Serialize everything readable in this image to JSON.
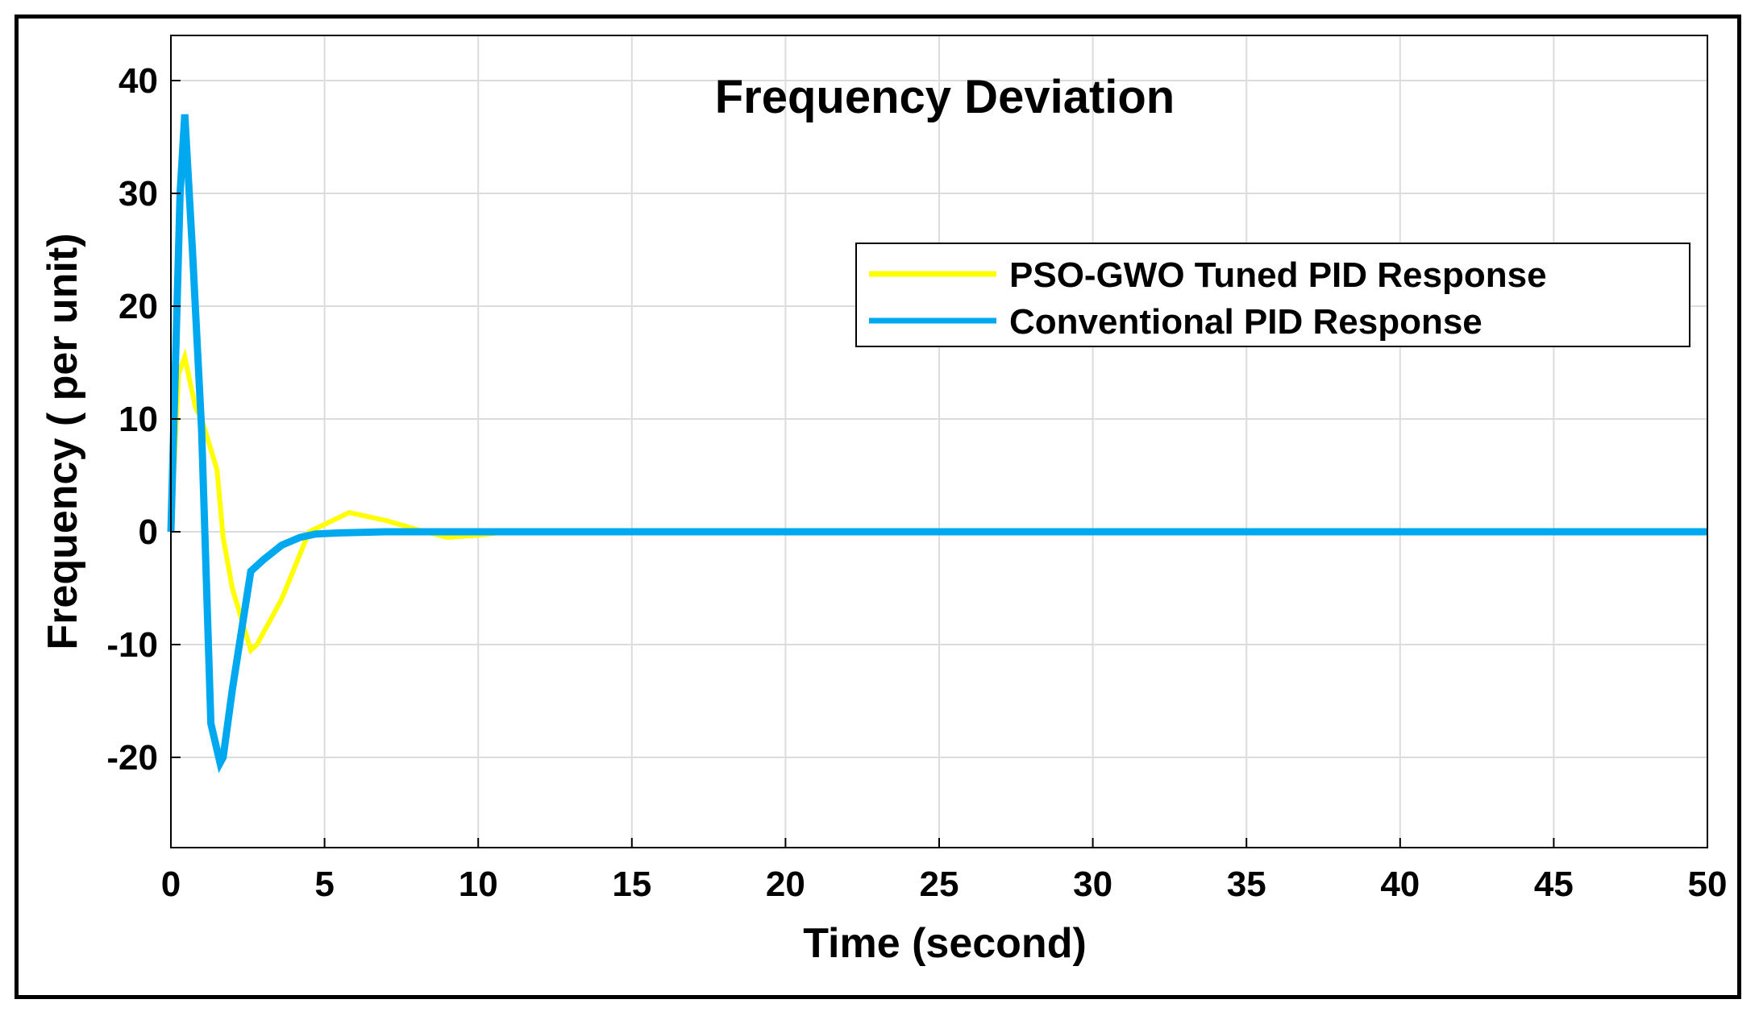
{
  "chart_data": {
    "type": "line",
    "title": "Frequency Deviation",
    "xlabel": "Time (second)",
    "ylabel": "Frequency ( per unit)",
    "xlim": [
      0,
      50
    ],
    "ylim": [
      -28,
      44
    ],
    "xticks": [
      0,
      5,
      10,
      15,
      20,
      25,
      30,
      35,
      40,
      45,
      50
    ],
    "yticks": [
      -20,
      -10,
      0,
      10,
      20,
      30,
      40
    ],
    "grid": true,
    "legend_position": "top-right",
    "series": [
      {
        "name": "PSO-GWO Tuned PID Response",
        "color": "#ffff00",
        "x": [
          0,
          0.25,
          0.45,
          0.8,
          1.0,
          1.5,
          1.7,
          2.0,
          2.6,
          2.8,
          3.6,
          4.5,
          5.8,
          7.0,
          8.0,
          9.0,
          10.0,
          11.0,
          20,
          30,
          40,
          50
        ],
        "y": [
          0,
          14,
          15.5,
          11,
          10,
          5.5,
          -0.5,
          -5,
          -10.5,
          -10,
          -6,
          0,
          1.7,
          1.0,
          0.2,
          -0.5,
          -0.3,
          0,
          0,
          0,
          0,
          0
        ]
      },
      {
        "name": "Conventional PID Response",
        "color": "#00a8f0",
        "x": [
          0,
          0.15,
          0.3,
          0.45,
          0.7,
          1.0,
          1.3,
          1.6,
          1.7,
          2.0,
          2.6,
          3.0,
          3.6,
          4.2,
          4.7,
          5.5,
          7.0,
          10,
          20,
          30,
          40,
          50
        ],
        "y": [
          0,
          15,
          30,
          37,
          25,
          9,
          -17,
          -20.5,
          -20,
          -14,
          -3.5,
          -2.5,
          -1.2,
          -0.5,
          -0.2,
          -0.1,
          0,
          0,
          0,
          0,
          0,
          0
        ]
      }
    ]
  }
}
